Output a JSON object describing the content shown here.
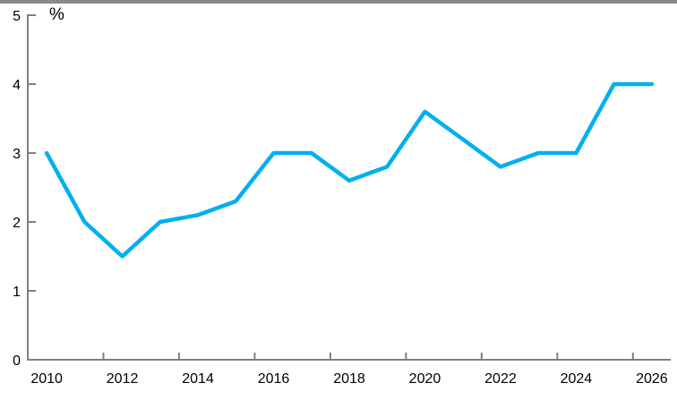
{
  "chart": {
    "line_color": "#00B0F0",
    "axis_color": "#7F7F7F",
    "text_color": "#000000",
    "top_border_color": "#8A8A8A",
    "background_color": "#FFFFFF"
  },
  "chart_data": {
    "type": "line",
    "title": "",
    "ylabel": "%",
    "xlabel": "",
    "categories": [
      "2010",
      "2011",
      "2012",
      "2013",
      "2014",
      "2015",
      "2016",
      "2017",
      "2018",
      "2019",
      "2020",
      "2021",
      "2022",
      "2023",
      "2024",
      "2025",
      "2026"
    ],
    "values": [
      3.0,
      2.0,
      1.5,
      2.0,
      2.1,
      2.3,
      3.0,
      3.0,
      2.6,
      2.8,
      3.6,
      3.2,
      2.8,
      3.0,
      3.0,
      4.0,
      4.0
    ],
    "ylim": [
      0,
      5
    ],
    "yticks": [
      0,
      1,
      2,
      3,
      4,
      5
    ],
    "ytick_labels": [
      "0",
      "1",
      "2",
      "3",
      "4",
      "5"
    ],
    "xtick_labels": [
      "2010",
      "2012",
      "2014",
      "2016",
      "2018",
      "2020",
      "2022",
      "2024",
      "2026"
    ],
    "xtick_step": 2,
    "grid": false,
    "legend": false
  }
}
